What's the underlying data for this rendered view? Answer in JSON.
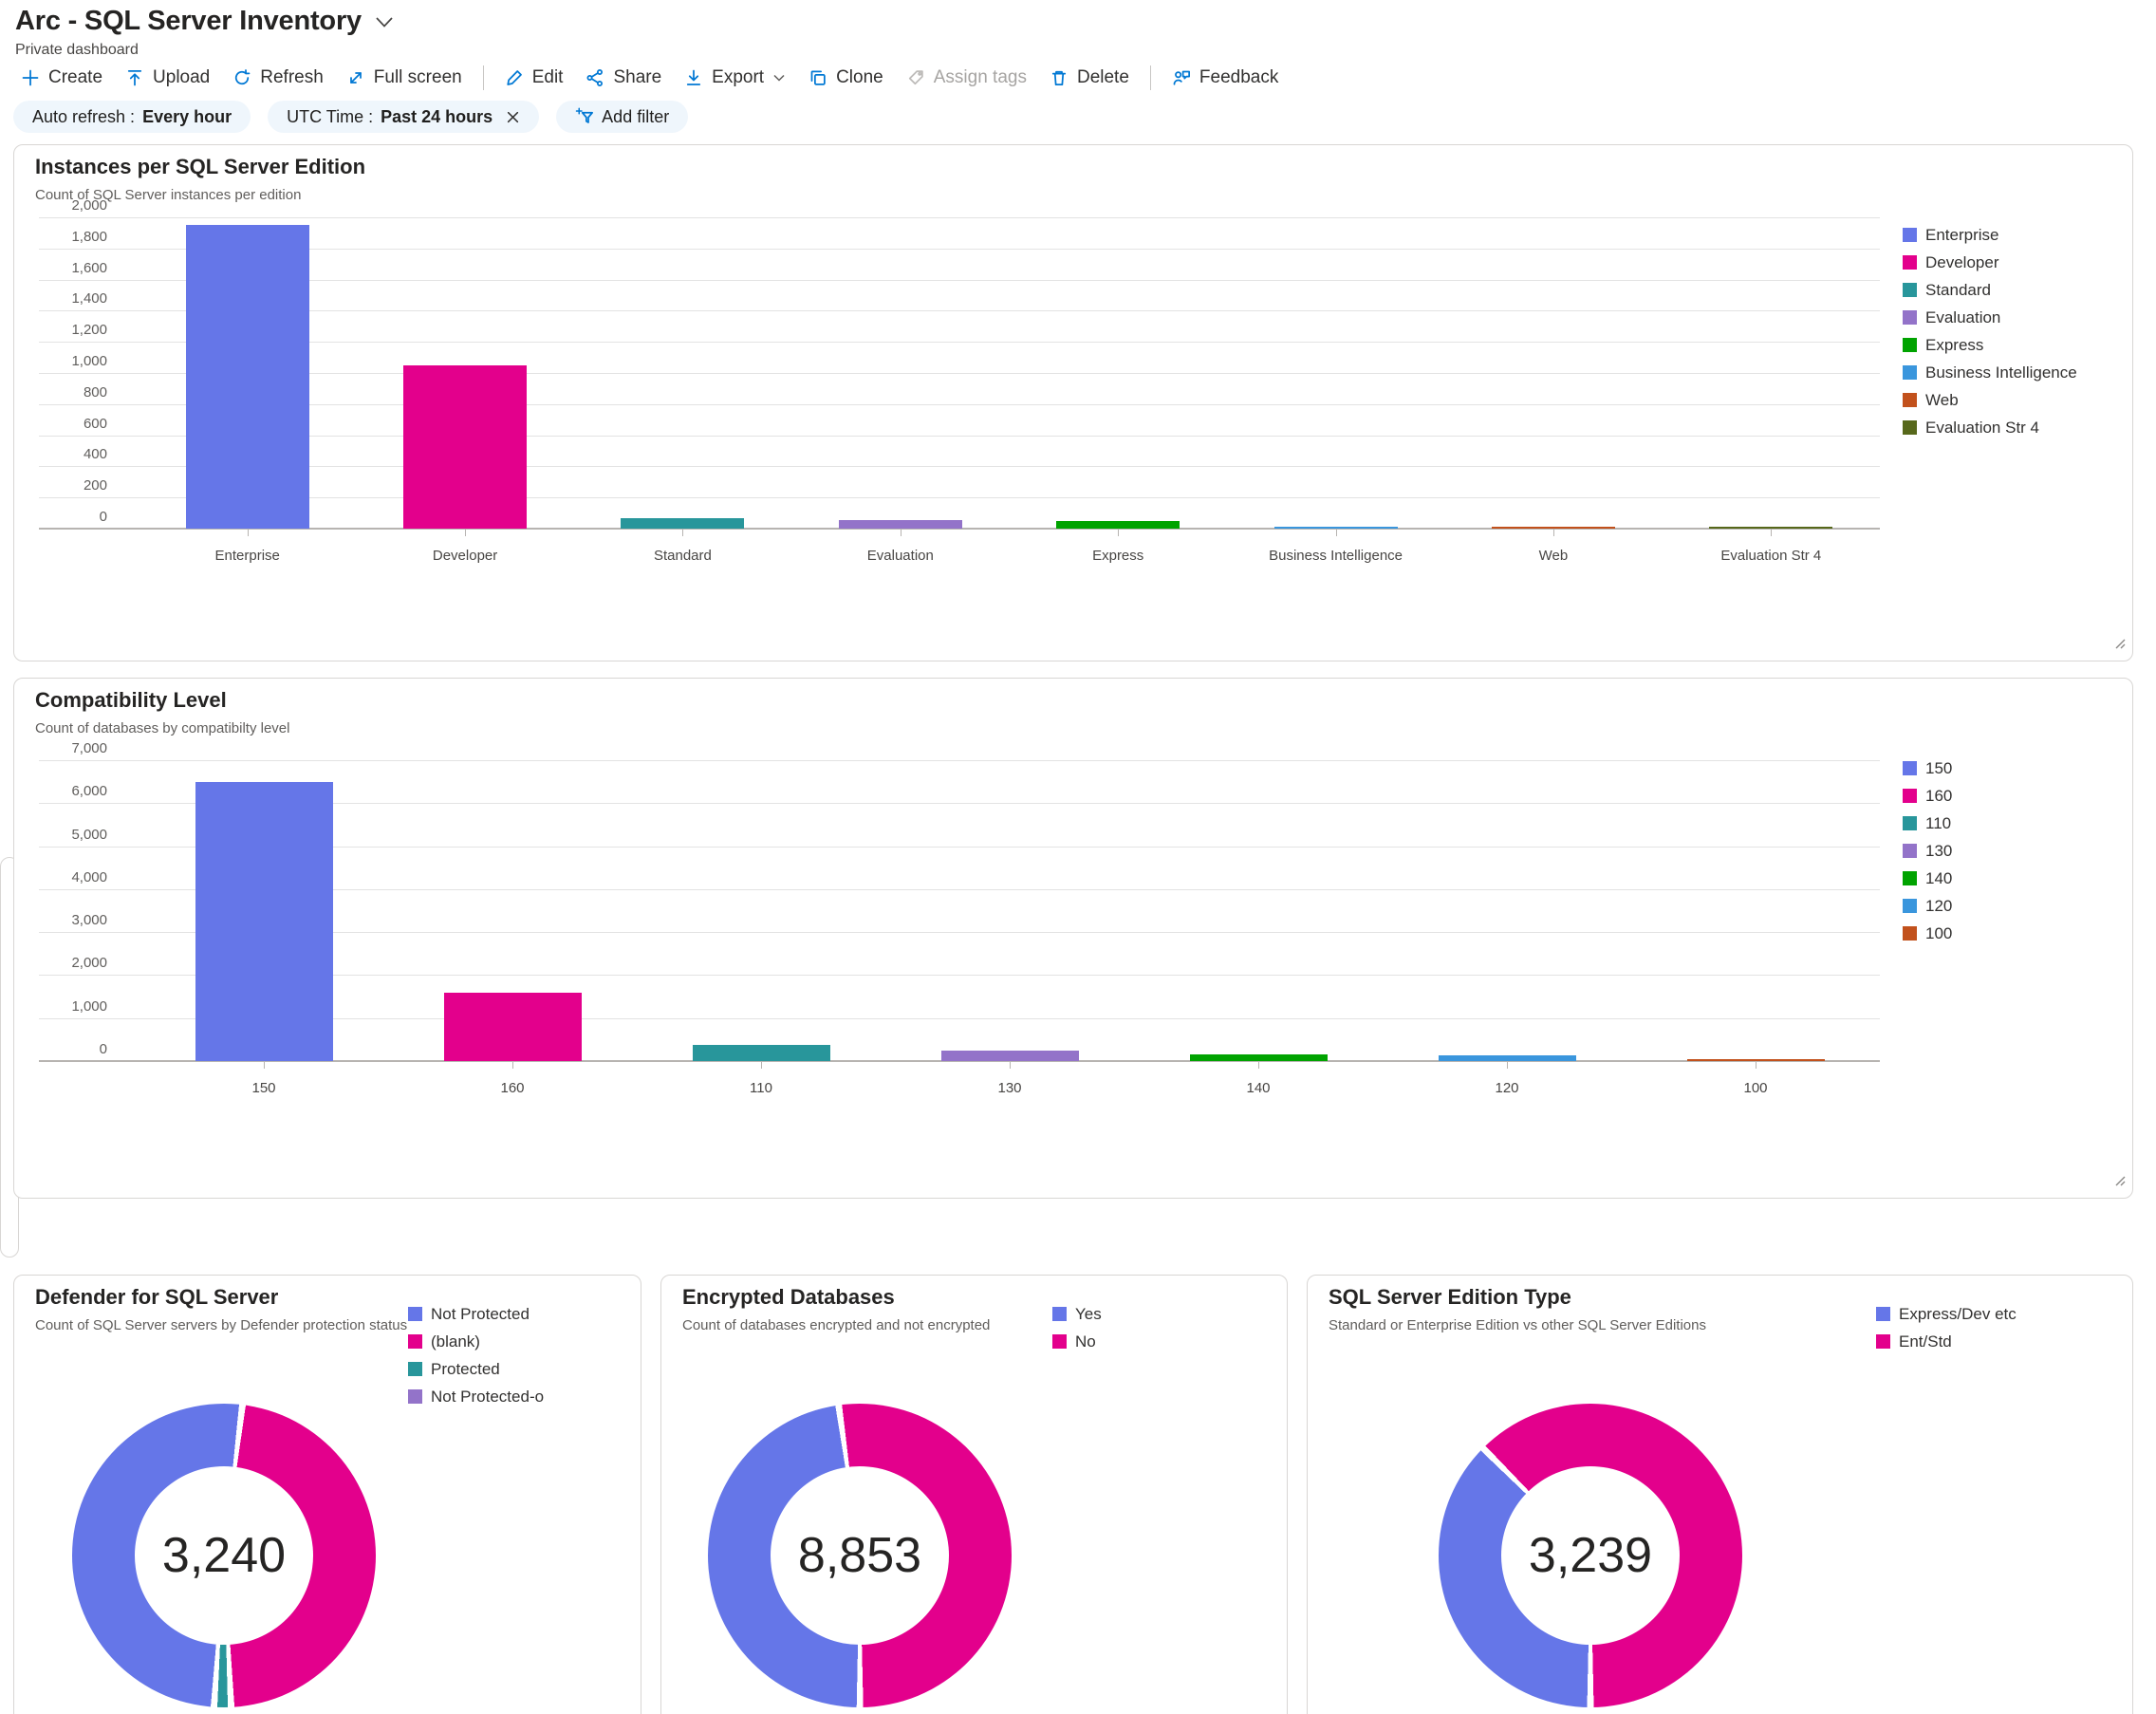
{
  "header": {
    "title": "Arc - SQL Server Inventory",
    "subtitle": "Private dashboard"
  },
  "toolbar": {
    "items": [
      {
        "label": "Create",
        "icon": "plus-icon"
      },
      {
        "label": "Upload",
        "icon": "upload-icon"
      },
      {
        "label": "Refresh",
        "icon": "refresh-icon"
      },
      {
        "label": "Full screen",
        "icon": "fullscreen-icon"
      },
      {
        "divider": true
      },
      {
        "label": "Edit",
        "icon": "edit-icon"
      },
      {
        "label": "Share",
        "icon": "share-icon"
      },
      {
        "label": "Export",
        "icon": "export-icon",
        "chevron": true
      },
      {
        "label": "Clone",
        "icon": "clone-icon"
      },
      {
        "label": "Assign tags",
        "icon": "tag-icon",
        "disabled": true
      },
      {
        "label": "Delete",
        "icon": "delete-icon"
      },
      {
        "divider": true
      },
      {
        "label": "Feedback",
        "icon": "feedback-icon"
      }
    ]
  },
  "filters": {
    "pills": [
      {
        "label": "Auto refresh : ",
        "value": "Every hour"
      },
      {
        "label": "UTC Time : ",
        "value": "Past 24 hours",
        "closable": true
      },
      {
        "label": "Add filter",
        "icon": "add-filter-icon"
      }
    ]
  },
  "colors": {
    "accent": "#0078d4",
    "blue": "#6576E8",
    "magenta": "#E3008C",
    "teal": "#28969B",
    "purple": "#9373C9",
    "green": "#00A300",
    "lightblue": "#3A96DD",
    "orange": "#C2511C",
    "olive": "#57681B",
    "pill_bg": "#eff6fc"
  },
  "chart_data": [
    {
      "type": "bar",
      "title": "Instances per SQL Server Edition",
      "subtitle": "Count of SQL Server instances per edition",
      "categories": [
        "Enterprise",
        "Developer",
        "Standard",
        "Evaluation",
        "Express",
        "Business Intelligence",
        "Web",
        "Evaluation Str 4"
      ],
      "values": [
        1950,
        1050,
        65,
        55,
        48,
        8,
        5,
        4
      ],
      "colors": [
        "#6576E8",
        "#E3008C",
        "#28969B",
        "#9373C9",
        "#00A300",
        "#3A96DD",
        "#C2511C",
        "#57681B"
      ],
      "ylim": [
        0,
        2000
      ],
      "ytick_step": 200,
      "grid": true,
      "legend_position": "right",
      "legend": [
        {
          "label": "Enterprise",
          "color": "#6576E8"
        },
        {
          "label": "Developer",
          "color": "#E3008C"
        },
        {
          "label": "Standard",
          "color": "#28969B"
        },
        {
          "label": "Evaluation",
          "color": "#9373C9"
        },
        {
          "label": "Express",
          "color": "#00A300"
        },
        {
          "label": "Business Intelligence",
          "color": "#3A96DD"
        },
        {
          "label": "Web",
          "color": "#C2511C"
        },
        {
          "label": "Evaluation Str 4",
          "color": "#57681B"
        }
      ]
    },
    {
      "type": "bar",
      "title": "Compatibility Level",
      "subtitle": "Count of databases by compatibilty level",
      "categories": [
        "150",
        "160",
        "110",
        "130",
        "140",
        "120",
        "100"
      ],
      "values": [
        6500,
        1600,
        375,
        235,
        150,
        125,
        30
      ],
      "colors": [
        "#6576E8",
        "#E3008C",
        "#28969B",
        "#9373C9",
        "#00A300",
        "#3A96DD",
        "#C2511C"
      ],
      "ylim": [
        0,
        7000
      ],
      "ytick_step": 1000,
      "grid": true,
      "legend_position": "right",
      "legend": [
        {
          "label": "150",
          "color": "#6576E8"
        },
        {
          "label": "160",
          "color": "#E3008C"
        },
        {
          "label": "110",
          "color": "#28969B"
        },
        {
          "label": "130",
          "color": "#9373C9"
        },
        {
          "label": "140",
          "color": "#00A300"
        },
        {
          "label": "120",
          "color": "#3A96DD"
        },
        {
          "label": "100",
          "color": "#C2511C"
        }
      ]
    },
    {
      "type": "donut",
      "title": "Defender for SQL Server",
      "subtitle": "Count of SQL Server servers by Defender protection status",
      "total": "3,240",
      "start_angle_deg": 7,
      "segments": [
        {
          "label": "(blank)",
          "color": "#E3008C",
          "pct": 47.3
        },
        {
          "label": "Protected",
          "color": "#28969B",
          "pct": 1.8
        },
        {
          "label": "Not Protected",
          "color": "#6576E8",
          "pct": 50.9
        }
      ],
      "legend": [
        {
          "label": "Not Protected",
          "color": "#6576E8"
        },
        {
          "label": "(blank)",
          "color": "#E3008C"
        },
        {
          "label": "Protected",
          "color": "#28969B"
        },
        {
          "label": "Not Protected-o",
          "color": "#9373C9"
        }
      ]
    },
    {
      "type": "donut",
      "title": "Encrypted Databases",
      "subtitle": "Count of databases encrypted and not encrypted",
      "total": "8,853",
      "start_angle_deg": -8,
      "segments": [
        {
          "label": "No",
          "color": "#E3008C",
          "pct": 52.2
        },
        {
          "label": "Yes",
          "color": "#6576E8",
          "pct": 47.8
        }
      ],
      "legend": [
        {
          "label": "Yes",
          "color": "#6576E8"
        },
        {
          "label": "No",
          "color": "#E3008C"
        }
      ]
    },
    {
      "type": "donut",
      "title": "SQL Server Edition Type",
      "subtitle": "Standard or Enterprise Edition vs other SQL Server Editions",
      "total": "3,239",
      "start_angle_deg": 180,
      "segments": [
        {
          "label": "Express/Dev etc",
          "color": "#6576E8",
          "pct": 37.5
        },
        {
          "label": "Ent/Std",
          "color": "#E3008C",
          "pct": 62.5
        }
      ],
      "legend": [
        {
          "label": "Express/Dev etc",
          "color": "#6576E8"
        },
        {
          "label": "Ent/Std",
          "color": "#E3008C"
        }
      ]
    }
  ]
}
